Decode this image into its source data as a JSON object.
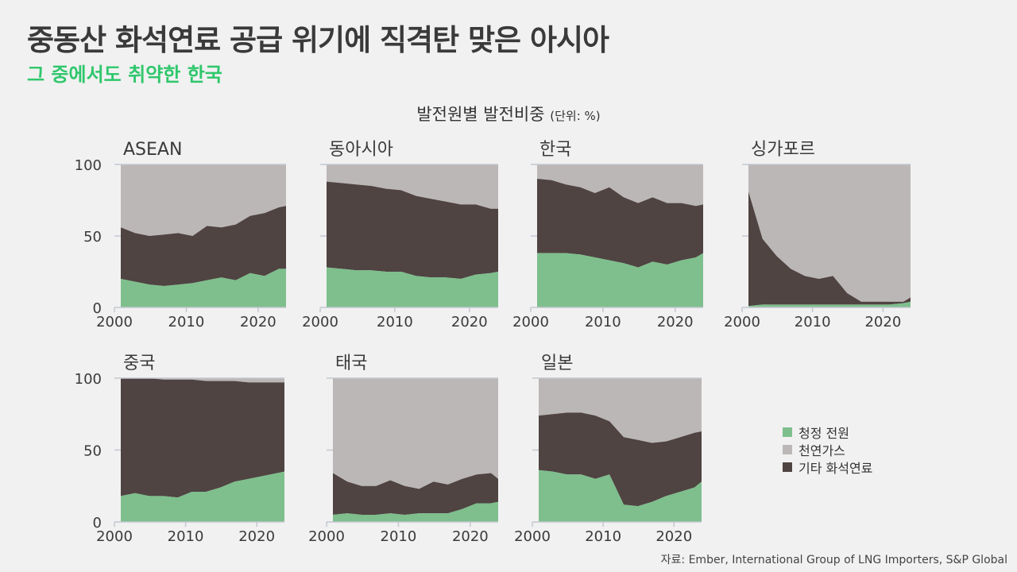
{
  "header": {
    "title": "중동산 화석연료 공급 위기에 직격탄 맞은 아시아",
    "subtitle": "그 중에서도 취약한 한국"
  },
  "source": "자료: Ember, International Group of LNG Importers, S&P Global",
  "colors": {
    "clean": "#7ebf8d",
    "gas": "#bcb7b7",
    "other_fossil": "#4f4442",
    "title": "#3a3a3a",
    "accent": "#2fc76c"
  },
  "chart_data": {
    "type": "area",
    "stacked": true,
    "title": "발전원별 발전비중",
    "unit": "(단위: %)",
    "ylim": [
      0,
      100
    ],
    "yticks": [
      "0",
      "50",
      "100"
    ],
    "xlim": [
      2000,
      2023
    ],
    "xticks": [
      "2000",
      "2010",
      "2020"
    ],
    "x": [
      2000,
      2002,
      2004,
      2006,
      2008,
      2010,
      2012,
      2014,
      2016,
      2018,
      2020,
      2022,
      2023
    ],
    "legend": {
      "placement": "bottom-right",
      "entries": [
        {
          "key": "clean",
          "label": "청정 전원"
        },
        {
          "key": "gas",
          "label": "천연가스"
        },
        {
          "key": "other_fossil",
          "label": "기타 화석연료"
        }
      ]
    },
    "panels": [
      {
        "title": "ASEAN",
        "clean": [
          20,
          18,
          16,
          15,
          16,
          17,
          19,
          21,
          19,
          24,
          22,
          27,
          27
        ],
        "other_fossil": [
          36,
          34,
          34,
          36,
          36,
          33,
          38,
          35,
          39,
          40,
          44,
          43,
          44
        ],
        "gas": [
          44,
          48,
          50,
          49,
          48,
          50,
          43,
          44,
          42,
          36,
          34,
          30,
          29
        ]
      },
      {
        "title": "동아시아",
        "clean": [
          28,
          27,
          26,
          26,
          25,
          25,
          22,
          21,
          21,
          20,
          23,
          24,
          25
        ],
        "other_fossil": [
          60,
          60,
          60,
          59,
          58,
          57,
          56,
          55,
          53,
          52,
          49,
          45,
          44
        ],
        "gas": [
          12,
          13,
          14,
          15,
          17,
          18,
          22,
          24,
          26,
          28,
          28,
          31,
          31
        ]
      },
      {
        "title": "한국",
        "clean": [
          38,
          38,
          38,
          37,
          35,
          33,
          31,
          28,
          32,
          30,
          33,
          35,
          38
        ],
        "other_fossil": [
          52,
          51,
          48,
          47,
          45,
          51,
          46,
          45,
          45,
          43,
          40,
          36,
          34
        ],
        "gas": [
          10,
          11,
          14,
          16,
          20,
          16,
          23,
          27,
          23,
          27,
          27,
          29,
          28
        ]
      },
      {
        "title": "싱가포르",
        "clean": [
          1,
          2,
          2,
          2,
          2,
          2,
          2,
          2,
          2,
          2,
          2,
          3,
          4
        ],
        "other_fossil": [
          80,
          46,
          34,
          25,
          20,
          18,
          20,
          8,
          2,
          2,
          2,
          1,
          3
        ],
        "gas": [
          19,
          52,
          64,
          73,
          78,
          80,
          78,
          90,
          96,
          96,
          96,
          96,
          93
        ]
      },
      {
        "title": "중국",
        "clean": [
          18,
          20,
          18,
          18,
          17,
          21,
          21,
          24,
          28,
          30,
          32,
          34,
          35
        ],
        "other_fossil": [
          82,
          80,
          82,
          81,
          82,
          78,
          77,
          74,
          70,
          67,
          65,
          63,
          62
        ],
        "gas": [
          0,
          0,
          0,
          1,
          1,
          1,
          2,
          2,
          2,
          3,
          3,
          3,
          3
        ]
      },
      {
        "title": "태국",
        "clean": [
          5,
          6,
          5,
          5,
          6,
          5,
          6,
          6,
          6,
          9,
          13,
          13,
          14
        ],
        "other_fossil": [
          29,
          22,
          20,
          20,
          23,
          20,
          17,
          22,
          20,
          21,
          20,
          21,
          16
        ],
        "gas": [
          66,
          72,
          75,
          75,
          71,
          75,
          77,
          72,
          74,
          70,
          67,
          66,
          70
        ]
      },
      {
        "title": "일본",
        "clean": [
          36,
          35,
          33,
          33,
          30,
          33,
          12,
          11,
          14,
          18,
          21,
          24,
          28
        ],
        "other_fossil": [
          38,
          40,
          43,
          43,
          44,
          37,
          47,
          46,
          41,
          38,
          38,
          38,
          35
        ],
        "gas": [
          26,
          25,
          24,
          24,
          26,
          30,
          41,
          43,
          45,
          44,
          41,
          38,
          37
        ]
      }
    ]
  }
}
